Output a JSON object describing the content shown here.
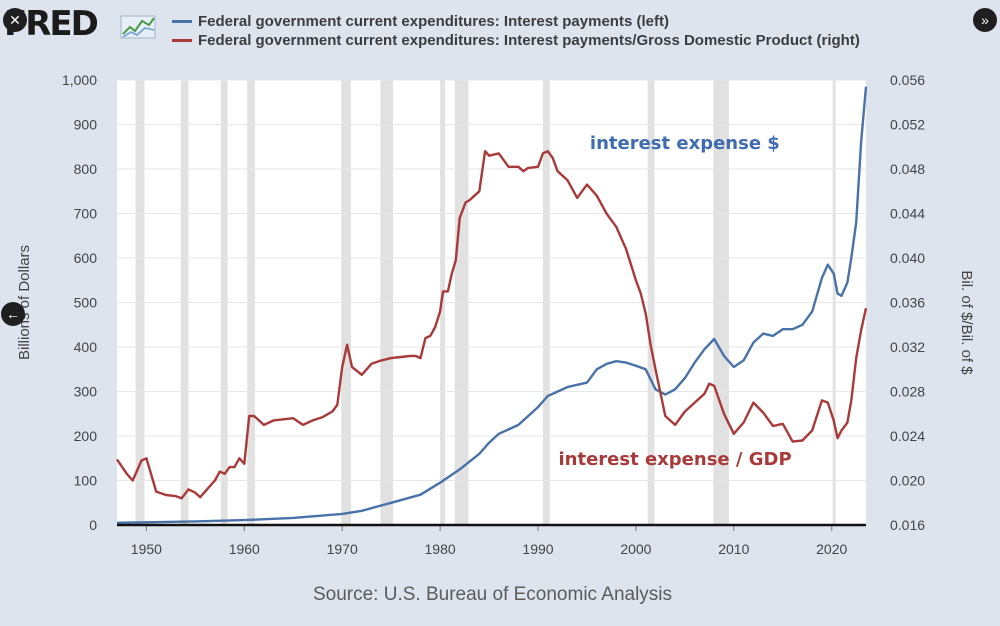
{
  "app": {
    "logo_text": "FRED",
    "close_icon": "close-icon",
    "next_icon": "chevron-right-icon",
    "prev_icon": "chevron-left-icon",
    "source": "Source: U.S. Bureau of Economic Analysis",
    "colors": {
      "background": "#dde4ee",
      "plot": "#ffffff",
      "recession": "#e1e1e1",
      "blue": "#4872a8",
      "red": "#a83a3a"
    }
  },
  "chart_data": {
    "type": "line",
    "legend": [
      {
        "label": "Federal government current expenditures: Interest payments (left)",
        "color": "#4872a8"
      },
      {
        "label": "Federal government current expenditures: Interest payments/Gross Domestic Product (right)",
        "color": "#a83a3a"
      }
    ],
    "ylabel_left": "Billions of Dollars",
    "ylabel_right": "Bil. of $/Bil. of $",
    "xlim": [
      1947,
      2023.5
    ],
    "ylim_left": [
      0,
      1000
    ],
    "ylim_right": [
      0.016,
      0.056
    ],
    "x_ticks": [
      "1950",
      "1960",
      "1970",
      "1980",
      "1990",
      "2000",
      "2010",
      "2020"
    ],
    "y_ticks_left": [
      "0",
      "100",
      "200",
      "300",
      "400",
      "500",
      "600",
      "700",
      "800",
      "900",
      "1,000"
    ],
    "y_ticks_right": [
      "0.016",
      "0.020",
      "0.024",
      "0.028",
      "0.032",
      "0.036",
      "0.040",
      "0.044",
      "0.048",
      "0.052",
      "0.056"
    ],
    "recessions": [
      [
        1948.9,
        1949.8
      ],
      [
        1953.5,
        1954.3
      ],
      [
        1957.6,
        1958.3
      ],
      [
        1960.3,
        1961.1
      ],
      [
        1969.9,
        1970.9
      ],
      [
        1973.9,
        1975.2
      ],
      [
        1980.0,
        1980.5
      ],
      [
        1981.5,
        1982.9
      ],
      [
        1990.5,
        1991.2
      ],
      [
        2001.2,
        2001.9
      ],
      [
        2007.9,
        2009.5
      ],
      [
        2020.1,
        2020.4
      ]
    ],
    "series": [
      {
        "name": "Interest payments",
        "axis": "left",
        "color": "#4872a8",
        "points": [
          [
            1947,
            5
          ],
          [
            1950,
            6
          ],
          [
            1955,
            8
          ],
          [
            1960,
            11
          ],
          [
            1965,
            16
          ],
          [
            1970,
            25
          ],
          [
            1972,
            32
          ],
          [
            1975,
            50
          ],
          [
            1978,
            68
          ],
          [
            1980,
            95
          ],
          [
            1982,
            125
          ],
          [
            1984,
            160
          ],
          [
            1985,
            185
          ],
          [
            1986,
            205
          ],
          [
            1988,
            225
          ],
          [
            1990,
            265
          ],
          [
            1991,
            290
          ],
          [
            1993,
            310
          ],
          [
            1995,
            320
          ],
          [
            1996,
            350
          ],
          [
            1997,
            362
          ],
          [
            1998,
            368
          ],
          [
            1999,
            365
          ],
          [
            2000,
            358
          ],
          [
            2001,
            350
          ],
          [
            2002,
            305
          ],
          [
            2003,
            293
          ],
          [
            2004,
            305
          ],
          [
            2005,
            330
          ],
          [
            2006,
            365
          ],
          [
            2007,
            395
          ],
          [
            2008,
            418
          ],
          [
            2009,
            380
          ],
          [
            2010,
            355
          ],
          [
            2011,
            370
          ],
          [
            2012,
            410
          ],
          [
            2013,
            430
          ],
          [
            2014,
            425
          ],
          [
            2015,
            440
          ],
          [
            2016,
            440
          ],
          [
            2017,
            450
          ],
          [
            2018,
            480
          ],
          [
            2019,
            555
          ],
          [
            2019.6,
            585
          ],
          [
            2020.2,
            565
          ],
          [
            2020.6,
            520
          ],
          [
            2021,
            515
          ],
          [
            2021.6,
            545
          ],
          [
            2022,
            600
          ],
          [
            2022.5,
            680
          ],
          [
            2023,
            860
          ],
          [
            2023.5,
            985
          ]
        ]
      },
      {
        "name": "Interest payments/GDP",
        "axis": "right",
        "color": "#a83a3a",
        "points": [
          [
            1947,
            0.0219
          ],
          [
            1948,
            0.0206
          ],
          [
            1948.6,
            0.02
          ],
          [
            1949.5,
            0.0218
          ],
          [
            1950,
            0.022
          ],
          [
            1950.5,
            0.0205
          ],
          [
            1951,
            0.019
          ],
          [
            1952,
            0.0187
          ],
          [
            1953,
            0.0186
          ],
          [
            1953.6,
            0.0184
          ],
          [
            1954.3,
            0.0192
          ],
          [
            1955,
            0.0189
          ],
          [
            1955.5,
            0.0185
          ],
          [
            1956,
            0.019
          ],
          [
            1957,
            0.02
          ],
          [
            1957.5,
            0.0208
          ],
          [
            1958,
            0.0206
          ],
          [
            1958.5,
            0.0212
          ],
          [
            1959,
            0.0212
          ],
          [
            1959.5,
            0.022
          ],
          [
            1960,
            0.0215
          ],
          [
            1960.5,
            0.0258
          ],
          [
            1961,
            0.0258
          ],
          [
            1962,
            0.025
          ],
          [
            1963,
            0.0254
          ],
          [
            1964,
            0.0255
          ],
          [
            1965,
            0.0256
          ],
          [
            1966,
            0.025
          ],
          [
            1967,
            0.0254
          ],
          [
            1968,
            0.0257
          ],
          [
            1969,
            0.0262
          ],
          [
            1969.5,
            0.0268
          ],
          [
            1970,
            0.0302
          ],
          [
            1970.5,
            0.0322
          ],
          [
            1971,
            0.0302
          ],
          [
            1972,
            0.0295
          ],
          [
            1973,
            0.0305
          ],
          [
            1974,
            0.0308
          ],
          [
            1975,
            0.031
          ],
          [
            1976,
            0.0311
          ],
          [
            1977,
            0.0312
          ],
          [
            1977.5,
            0.0312
          ],
          [
            1978,
            0.031
          ],
          [
            1978.5,
            0.0328
          ],
          [
            1979,
            0.033
          ],
          [
            1979.5,
            0.0338
          ],
          [
            1980,
            0.0352
          ],
          [
            1980.3,
            0.037
          ],
          [
            1980.8,
            0.037
          ],
          [
            1981.2,
            0.0386
          ],
          [
            1981.6,
            0.0398
          ],
          [
            1982,
            0.0436
          ],
          [
            1982.6,
            0.045
          ],
          [
            1983,
            0.0452
          ],
          [
            1984,
            0.046
          ],
          [
            1984.6,
            0.0496
          ],
          [
            1985,
            0.0492
          ],
          [
            1986,
            0.0494
          ],
          [
            1987,
            0.0482
          ],
          [
            1988,
            0.0482
          ],
          [
            1988.5,
            0.0478
          ],
          [
            1989,
            0.0481
          ],
          [
            1990,
            0.0482
          ],
          [
            1990.5,
            0.0494
          ],
          [
            1991,
            0.0496
          ],
          [
            1991.5,
            0.049
          ],
          [
            1992,
            0.0478
          ],
          [
            1993,
            0.047
          ],
          [
            1994,
            0.0454
          ],
          [
            1995,
            0.0466
          ],
          [
            1996,
            0.0456
          ],
          [
            1997,
            0.044
          ],
          [
            1998,
            0.0428
          ],
          [
            1999,
            0.0408
          ],
          [
            2000,
            0.038
          ],
          [
            2000.5,
            0.0368
          ],
          [
            2001,
            0.035
          ],
          [
            2001.5,
            0.0322
          ],
          [
            2002,
            0.03
          ],
          [
            2003,
            0.0258
          ],
          [
            2004,
            0.025
          ],
          [
            2005,
            0.0262
          ],
          [
            2006,
            0.027
          ],
          [
            2007,
            0.0278
          ],
          [
            2007.5,
            0.0287
          ],
          [
            2008,
            0.0285
          ],
          [
            2009,
            0.026
          ],
          [
            2010,
            0.0242
          ],
          [
            2011,
            0.0252
          ],
          [
            2012,
            0.027
          ],
          [
            2013,
            0.0261
          ],
          [
            2014,
            0.0249
          ],
          [
            2015,
            0.0251
          ],
          [
            2016,
            0.0235
          ],
          [
            2017,
            0.0236
          ],
          [
            2018,
            0.0245
          ],
          [
            2019,
            0.0272
          ],
          [
            2019.6,
            0.027
          ],
          [
            2020.2,
            0.0254
          ],
          [
            2020.6,
            0.0238
          ],
          [
            2021,
            0.0245
          ],
          [
            2021.6,
            0.0252
          ],
          [
            2022,
            0.0272
          ],
          [
            2022.5,
            0.031
          ],
          [
            2023,
            0.0335
          ],
          [
            2023.5,
            0.0355
          ]
        ]
      }
    ],
    "annotations": [
      {
        "text": "interest expense $",
        "x": 2005,
        "y": 0.0498,
        "axis": "right",
        "color": "#3f6cb0"
      },
      {
        "text": "interest expense / GDP",
        "x": 2004,
        "y": 0.0214,
        "axis": "right",
        "color": "#a83a3a"
      }
    ]
  }
}
